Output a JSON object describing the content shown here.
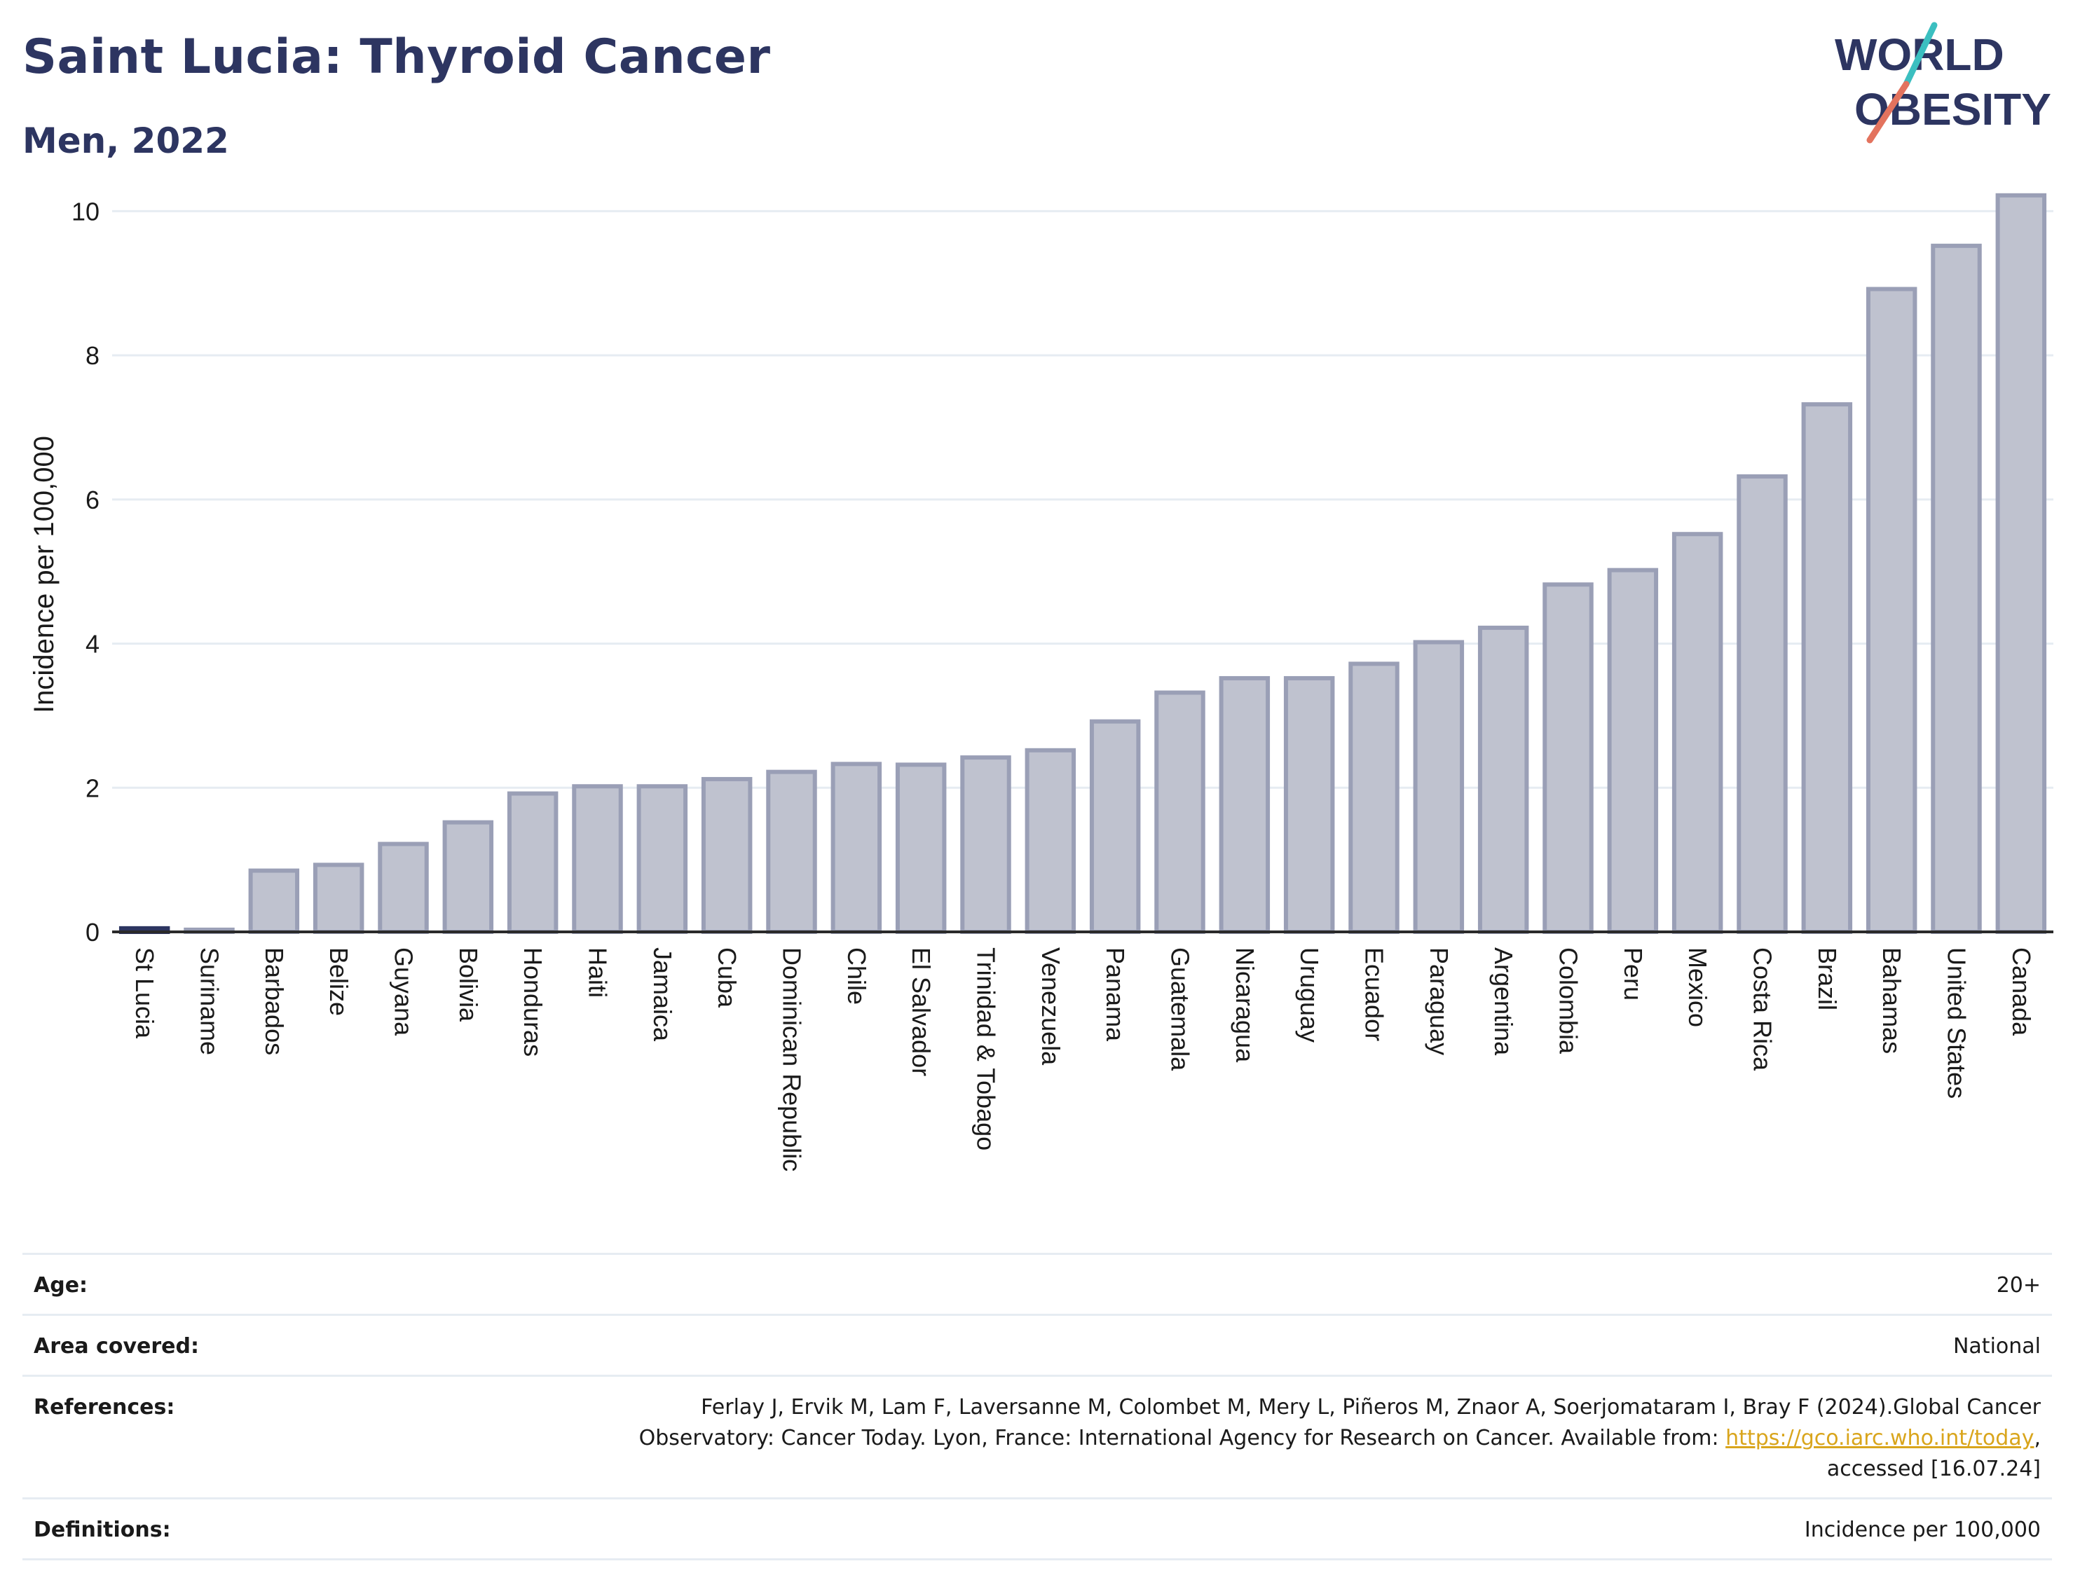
{
  "header": {
    "title": "Saint Lucia: Thyroid Cancer",
    "subtitle": "Men, 2022",
    "logo_line1": "WORLD",
    "logo_line2": "OBESITY"
  },
  "colors": {
    "title": "#2d3561",
    "bar_fill": "#bfc2cf",
    "bar_stroke": "#9a9fb6",
    "highlight_bar": "#2d3561",
    "logo_teal": "#3bbfc0",
    "logo_coral": "#e3735e"
  },
  "chart_data": {
    "type": "bar",
    "categories": [
      "St Lucia",
      "Suriname",
      "Barbados",
      "Belize",
      "Guyana",
      "Bolivia",
      "Honduras",
      "Haiti",
      "Jamaica",
      "Cuba",
      "Dominican Republic",
      "Chile",
      "El Salvador",
      "Trinidad & Tobago",
      "Venezuela",
      "Panama",
      "Guatemala",
      "Nicaragua",
      "Uruguay",
      "Ecuador",
      "Paraguay",
      "Argentina",
      "Colombia",
      "Peru",
      "Mexico",
      "Costa Rica",
      "Brazil",
      "Bahamas",
      "United States",
      "Canada"
    ],
    "values": [
      0.05,
      0.03,
      0.85,
      0.93,
      1.22,
      1.52,
      1.92,
      2.02,
      2.02,
      2.12,
      2.22,
      2.33,
      2.32,
      2.42,
      2.52,
      2.92,
      3.32,
      3.52,
      3.52,
      3.72,
      4.02,
      4.22,
      4.82,
      5.02,
      5.52,
      6.32,
      7.32,
      8.92,
      9.52,
      10.22
    ],
    "highlight": "St Lucia",
    "ylabel": "Incidence per 100,000",
    "ylim": [
      0,
      10.5
    ],
    "yticks": [
      0,
      2,
      4,
      6,
      8,
      10
    ],
    "grid": true
  },
  "info": {
    "age_label": "Age:",
    "age_value": "20+",
    "area_label": "Area covered:",
    "area_value": "National",
    "references_label": "References:",
    "references_line1": "Ferlay J, Ervik M, Lam F, Laversanne M, Colombet M, Mery L, Piñeros M, Znaor A, Soerjomataram I, Bray F (2024).Global Cancer",
    "references_line2_pre": "Observatory: Cancer Today. Lyon, France: International Agency for Research on Cancer. Available from: ",
    "references_link": "https://gco.iarc.who.int/today",
    "references_line2_post": ",",
    "references_line3": "accessed [16.07.24]",
    "definitions_label": "Definitions:",
    "definitions_value": "Incidence per 100,000"
  }
}
